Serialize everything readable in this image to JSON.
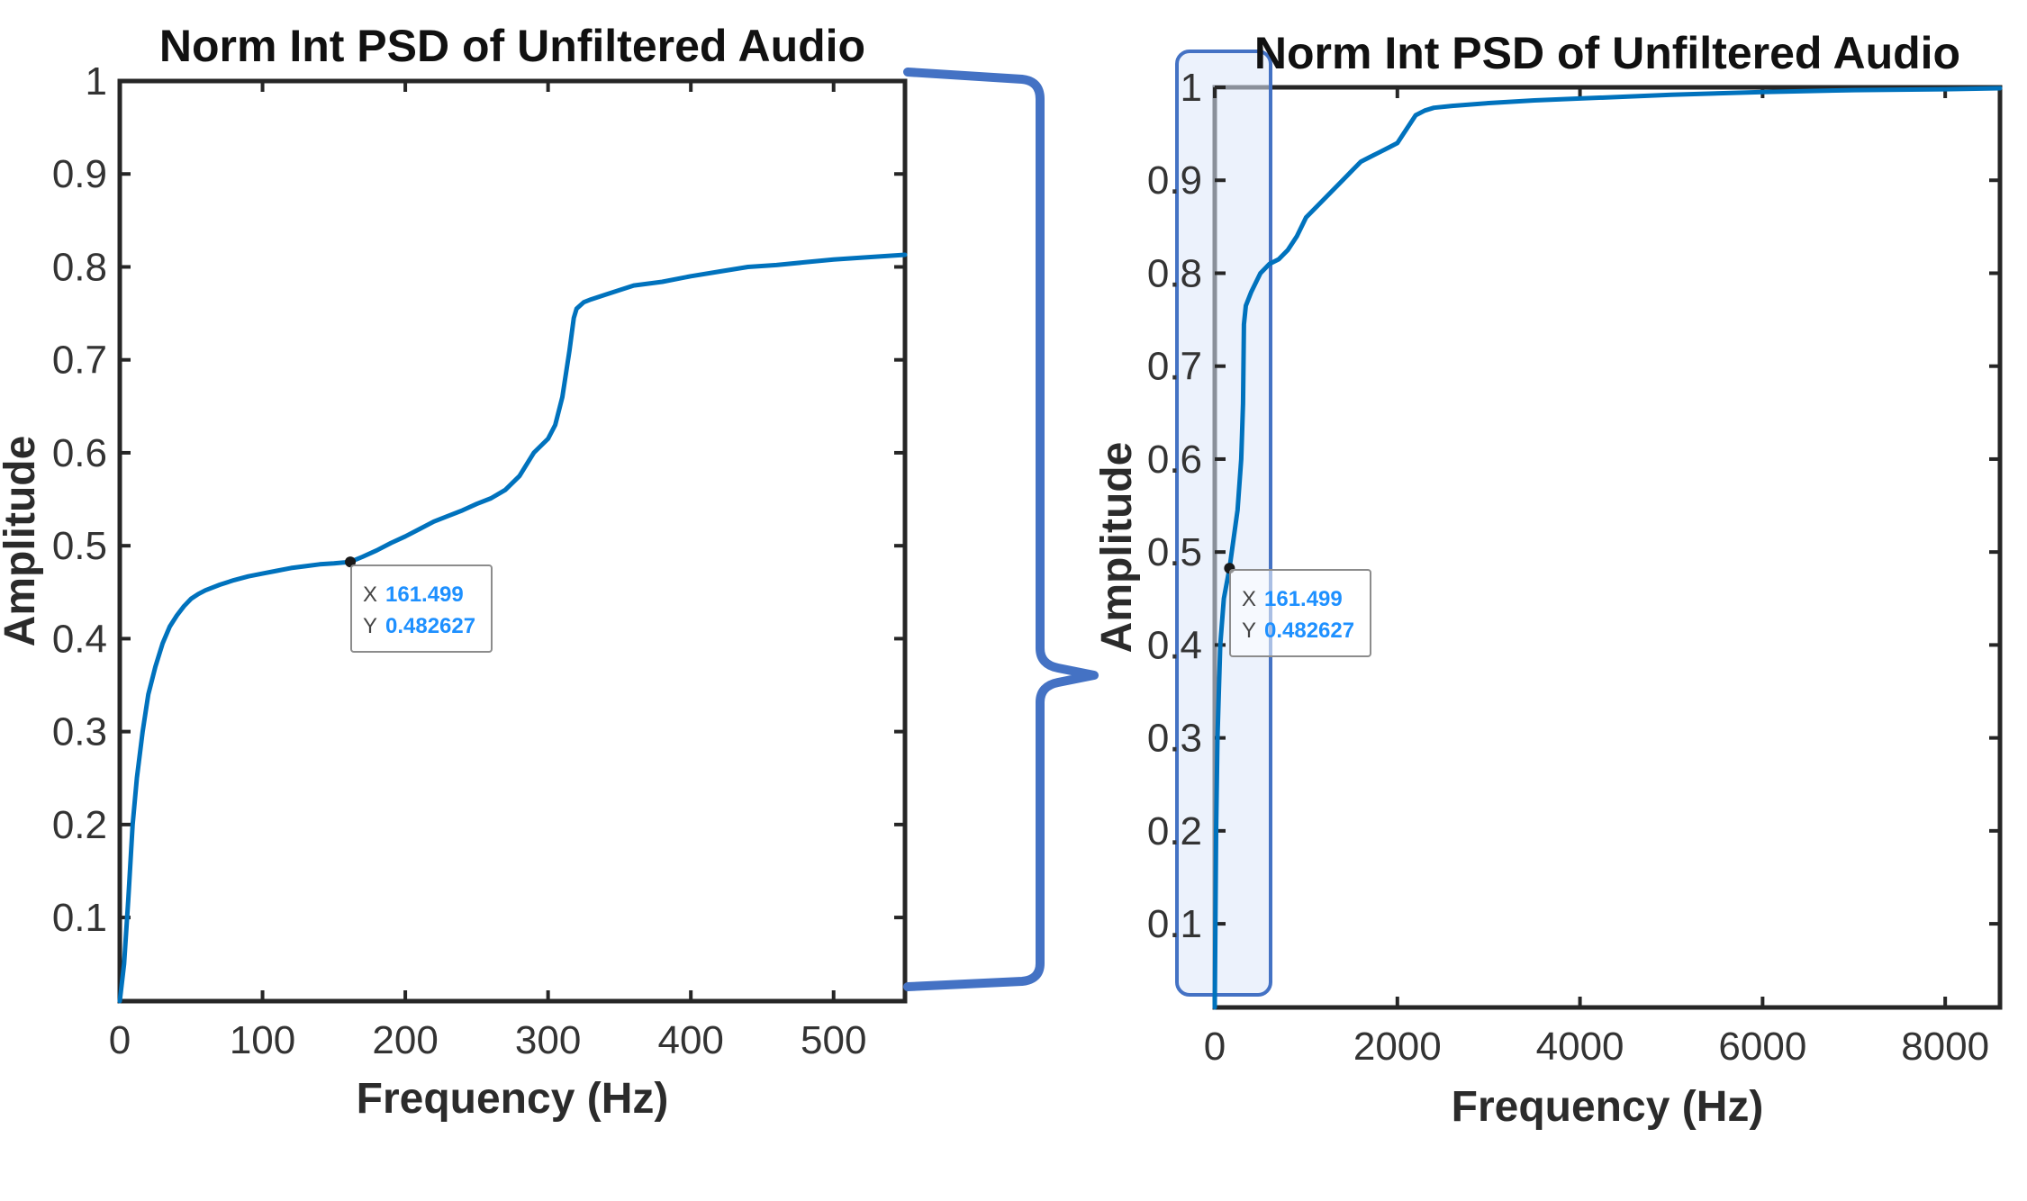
{
  "colors": {
    "series": "#0072BD",
    "annotation": "#4472C4",
    "datatip_value": "#1E90FF",
    "highlight_fill": "#DCE8FA"
  },
  "chart_data": [
    {
      "type": "line",
      "title": "Norm Int PSD of Unfiltered Audio",
      "xlabel": "Frequency (Hz)",
      "ylabel": "Amplitude",
      "xlim": [
        0,
        550
      ],
      "ylim": [
        0.01,
        1
      ],
      "xticks": [
        0,
        100,
        200,
        300,
        400,
        500
      ],
      "xtick_labels": [
        "0",
        "100",
        "200",
        "300",
        "400",
        "500"
      ],
      "yticks": [
        0.1,
        0.2,
        0.3,
        0.4,
        0.5,
        0.6,
        0.7,
        0.8,
        0.9,
        1
      ],
      "ytick_labels": [
        "0.1",
        "0.2",
        "0.3",
        "0.4",
        "0.5",
        "0.6",
        "0.7",
        "0.8",
        "0.9",
        "1"
      ],
      "grid": false,
      "series": [
        {
          "x": [
            0,
            3,
            6,
            9,
            12,
            16,
            20,
            25,
            30,
            35,
            40,
            45,
            50,
            55,
            60,
            70,
            80,
            90,
            100,
            110,
            120,
            130,
            140,
            150,
            161.499,
            170,
            180,
            190,
            200,
            210,
            220,
            230,
            240,
            250,
            260,
            270,
            280,
            290,
            300,
            305,
            310,
            315,
            318,
            320,
            325,
            330,
            340,
            350,
            360,
            380,
            400,
            420,
            440,
            460,
            480,
            500,
            520,
            550
          ],
          "y": [
            0.01,
            0.05,
            0.12,
            0.2,
            0.25,
            0.3,
            0.34,
            0.37,
            0.395,
            0.413,
            0.425,
            0.435,
            0.443,
            0.448,
            0.452,
            0.458,
            0.463,
            0.467,
            0.47,
            0.473,
            0.476,
            0.478,
            0.48,
            0.481,
            0.482627,
            0.488,
            0.495,
            0.503,
            0.51,
            0.518,
            0.526,
            0.532,
            0.538,
            0.545,
            0.551,
            0.56,
            0.575,
            0.6,
            0.615,
            0.63,
            0.66,
            0.71,
            0.745,
            0.755,
            0.762,
            0.765,
            0.77,
            0.775,
            0.78,
            0.784,
            0.79,
            0.795,
            0.8,
            0.802,
            0.805,
            0.808,
            0.81,
            0.813
          ]
        }
      ],
      "datatip": {
        "x_key": "X",
        "y_key": "Y",
        "x": 161.499,
        "y": 0.482627,
        "x_text": "161.499",
        "y_text": "0.482627"
      }
    },
    {
      "type": "line",
      "title": "Norm Int PSD of Unfiltered Audio",
      "xlabel": "Frequency (Hz)",
      "ylabel": "Amplitude",
      "xlim": [
        0,
        8600
      ],
      "ylim": [
        0.01,
        1
      ],
      "xticks": [
        0,
        2000,
        4000,
        6000,
        8000
      ],
      "xtick_labels": [
        "0",
        "2000",
        "4000",
        "6000",
        "8000"
      ],
      "yticks": [
        0.1,
        0.2,
        0.3,
        0.4,
        0.5,
        0.6,
        0.7,
        0.8,
        0.9,
        1
      ],
      "ytick_labels": [
        "0.1",
        "0.2",
        "0.3",
        "0.4",
        "0.5",
        "0.6",
        "0.7",
        "0.8",
        "0.9",
        "1"
      ],
      "grid": false,
      "series": [
        {
          "x": [
            0,
            15,
            30,
            60,
            100,
            161.499,
            200,
            250,
            290,
            310,
            320,
            340,
            400,
            500,
            600,
            700,
            800,
            900,
            1000,
            1100,
            1200,
            1300,
            1400,
            1500,
            1600,
            1700,
            1800,
            1900,
            2000,
            2100,
            2200,
            2300,
            2400,
            2600,
            3000,
            3500,
            4000,
            5000,
            6000,
            7000,
            8000,
            8600
          ],
          "y": [
            0.01,
            0.2,
            0.3,
            0.4,
            0.45,
            0.482627,
            0.51,
            0.545,
            0.6,
            0.66,
            0.745,
            0.765,
            0.78,
            0.8,
            0.81,
            0.815,
            0.825,
            0.84,
            0.86,
            0.87,
            0.88,
            0.89,
            0.9,
            0.91,
            0.92,
            0.925,
            0.93,
            0.935,
            0.94,
            0.955,
            0.97,
            0.975,
            0.978,
            0.98,
            0.983,
            0.986,
            0.988,
            0.992,
            0.995,
            0.997,
            0.998,
            0.999
          ]
        }
      ],
      "datatip": {
        "x_key": "X",
        "y_key": "Y",
        "x": 161.499,
        "y": 0.482627,
        "x_text": "161.499",
        "y_text": "0.482627"
      },
      "highlight": {
        "x_range": [
          -200,
          620
        ],
        "y_range": [
          0.0,
          1.04
        ]
      }
    }
  ]
}
